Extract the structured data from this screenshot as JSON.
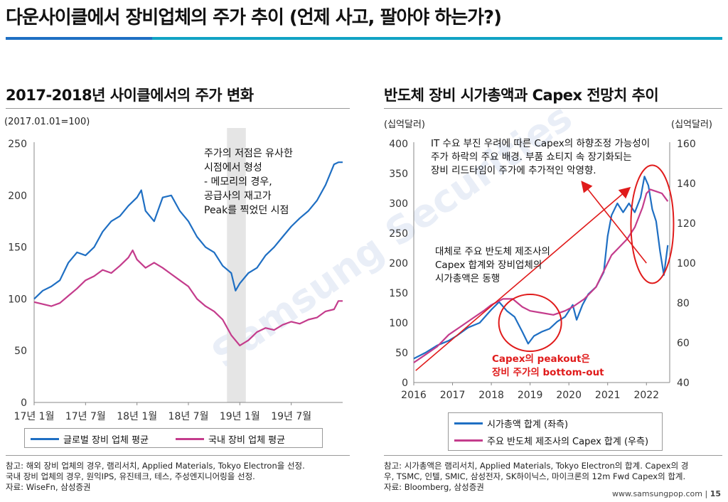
{
  "page": {
    "title": "다운사이클에서 장비업체의 주가 추이 (언제 사고, 팔아야 하는가?)",
    "watermark": "Samsung Securities",
    "footer_site": "www.samsungpop.com",
    "page_number": "15"
  },
  "left": {
    "title": "2017-2018년 사이클에서의 주가 변화",
    "unit": "(2017.01.01=100)",
    "notes": [
      "참고: 해외 장비 업체의 경우, 램리서치, Applied Materials, Tokyo Electron을 선정.",
      "국내 장비 업체의 경우, 원익IPS, 유진테크, 테스, 주성엔지니어링을 선정.",
      "자료: WiseFn, 삼성증권"
    ]
  },
  "right": {
    "title": "반도체 장비 시가총액과 Capex 전망치 추이",
    "unit_left": "(십억달러)",
    "unit_right": "(십억달러)",
    "notes": [
      "참고: 시가총액은 램리서치, Applied Materials, Tokyo Electron의 합계. Capex의 경",
      "우, TSMC, 인텔, SMIC, 삼성전자, SK하이닉스, 마이크론의 12m Fwd Capex의 합계.",
      "자료: Bloomberg, 삼성증권"
    ]
  },
  "chart_data": [
    {
      "type": "line",
      "ylim": [
        0,
        250
      ],
      "yticks": [
        0,
        50,
        100,
        150,
        200,
        250
      ],
      "xlim": [
        0,
        36
      ],
      "x_tick_labels": [
        "17년 1월",
        "17년 7월",
        "18년 1월",
        "18년 7월",
        "19년 1월",
        "19년 7월"
      ],
      "x_tick_positions": [
        0,
        6,
        12,
        18,
        24,
        30
      ],
      "shaded_region": [
        22.5,
        24.7
      ],
      "annotation": [
        "주가의 저점은 유사한",
        "시점에서 형성",
        "- 메모리의 경우,",
        "공급사의 재고가",
        "Peak를 찍었던 시점"
      ],
      "series": [
        {
          "name": "글로벌 장비 업체 평균",
          "color": "#1f6fc3",
          "points": [
            [
              0,
              100
            ],
            [
              1,
              108
            ],
            [
              2,
              112
            ],
            [
              3,
              118
            ],
            [
              4,
              135
            ],
            [
              5,
              145
            ],
            [
              6,
              142
            ],
            [
              7,
              150
            ],
            [
              8,
              165
            ],
            [
              9,
              175
            ],
            [
              10,
              180
            ],
            [
              11,
              190
            ],
            [
              12,
              198
            ],
            [
              12.5,
              205
            ],
            [
              13,
              185
            ],
            [
              14,
              175
            ],
            [
              15,
              198
            ],
            [
              16,
              200
            ],
            [
              17,
              185
            ],
            [
              18,
              175
            ],
            [
              19,
              160
            ],
            [
              20,
              150
            ],
            [
              21,
              145
            ],
            [
              22,
              132
            ],
            [
              23,
              125
            ],
            [
              23.5,
              108
            ],
            [
              24,
              115
            ],
            [
              25,
              125
            ],
            [
              26,
              130
            ],
            [
              27,
              142
            ],
            [
              28,
              150
            ],
            [
              29,
              160
            ],
            [
              30,
              170
            ],
            [
              31,
              178
            ],
            [
              32,
              185
            ],
            [
              33,
              195
            ],
            [
              34,
              210
            ],
            [
              35,
              230
            ],
            [
              35.5,
              232
            ],
            [
              36,
              232
            ]
          ]
        },
        {
          "name": "국내 장비 업체 평균",
          "color": "#c43c8c",
          "points": [
            [
              0,
              97
            ],
            [
              1,
              95
            ],
            [
              2,
              93
            ],
            [
              3,
              96
            ],
            [
              4,
              103
            ],
            [
              5,
              110
            ],
            [
              6,
              118
            ],
            [
              7,
              122
            ],
            [
              8,
              128
            ],
            [
              9,
              125
            ],
            [
              10,
              132
            ],
            [
              11,
              140
            ],
            [
              11.5,
              147
            ],
            [
              12,
              138
            ],
            [
              13,
              130
            ],
            [
              14,
              135
            ],
            [
              15,
              130
            ],
            [
              16,
              124
            ],
            [
              17,
              118
            ],
            [
              18,
              112
            ],
            [
              19,
              100
            ],
            [
              20,
              93
            ],
            [
              21,
              88
            ],
            [
              22,
              80
            ],
            [
              23,
              65
            ],
            [
              24,
              55
            ],
            [
              25,
              60
            ],
            [
              26,
              68
            ],
            [
              27,
              72
            ],
            [
              28,
              70
            ],
            [
              29,
              75
            ],
            [
              30,
              78
            ],
            [
              31,
              76
            ],
            [
              32,
              80
            ],
            [
              33,
              82
            ],
            [
              34,
              88
            ],
            [
              35,
              90
            ],
            [
              35.5,
              98
            ],
            [
              36,
              98
            ]
          ]
        }
      ]
    },
    {
      "type": "line",
      "ylim_left": [
        0,
        400
      ],
      "yticks_left": [
        0,
        50,
        100,
        150,
        200,
        250,
        300,
        350,
        400
      ],
      "ylim_right": [
        40,
        160
      ],
      "yticks_right": [
        40,
        60,
        80,
        100,
        120,
        140,
        160
      ],
      "xlim": [
        2016,
        2022.6
      ],
      "x_tick_labels": [
        "2016",
        "2017",
        "2018",
        "2019",
        "2020",
        "2021",
        "2022"
      ],
      "x_ticks": [
        2016,
        2017,
        2018,
        2019,
        2020,
        2021,
        2022
      ],
      "annotations": [
        [
          "IT 수요 부진 우려에 따른 Capex의 하향조정 가능성이",
          "주가 하락의 주요 배경. 부품 쇼티지 속 장기화되는",
          "장비 리드타임이 주가에 추가적인 악영향."
        ],
        [
          "대체로 주요 반도체 제조사의",
          "Capex 합계와 장비업체의",
          "시가총액은 동행"
        ],
        [
          "Capex의 peakout은",
          "장비 주가의 bottom-out"
        ]
      ],
      "series": [
        {
          "name": "시가총액 합계 (좌측)",
          "axis": "left",
          "color": "#1f6fc3",
          "points": [
            [
              2016,
              40
            ],
            [
              2016.3,
              50
            ],
            [
              2016.6,
              62
            ],
            [
              2016.9,
              70
            ],
            [
              2017.1,
              78
            ],
            [
              2017.4,
              92
            ],
            [
              2017.7,
              100
            ],
            [
              2018.0,
              122
            ],
            [
              2018.2,
              135
            ],
            [
              2018.4,
              120
            ],
            [
              2018.6,
              110
            ],
            [
              2018.8,
              85
            ],
            [
              2018.95,
              65
            ],
            [
              2019.1,
              78
            ],
            [
              2019.3,
              85
            ],
            [
              2019.5,
              90
            ],
            [
              2019.7,
              102
            ],
            [
              2019.9,
              110
            ],
            [
              2020.1,
              130
            ],
            [
              2020.2,
              105
            ],
            [
              2020.35,
              130
            ],
            [
              2020.5,
              148
            ],
            [
              2020.7,
              160
            ],
            [
              2020.9,
              185
            ],
            [
              2021.0,
              245
            ],
            [
              2021.1,
              280
            ],
            [
              2021.25,
              300
            ],
            [
              2021.4,
              285
            ],
            [
              2021.55,
              300
            ],
            [
              2021.7,
              285
            ],
            [
              2021.85,
              310
            ],
            [
              2021.95,
              345
            ],
            [
              2022.05,
              330
            ],
            [
              2022.15,
              290
            ],
            [
              2022.25,
              270
            ],
            [
              2022.35,
              220
            ],
            [
              2022.45,
              180
            ],
            [
              2022.55,
              230
            ]
          ]
        },
        {
          "name": "주요 반도체 제조사의 Capex 합계 (우측)",
          "axis": "right",
          "color": "#c43c8c",
          "points": [
            [
              2016,
              50
            ],
            [
              2016.3,
              54
            ],
            [
              2016.6,
              58
            ],
            [
              2016.9,
              64
            ],
            [
              2017.2,
              68
            ],
            [
              2017.5,
              72
            ],
            [
              2017.8,
              76
            ],
            [
              2018.0,
              79
            ],
            [
              2018.3,
              82
            ],
            [
              2018.55,
              82
            ],
            [
              2018.8,
              78
            ],
            [
              2019.0,
              76
            ],
            [
              2019.3,
              75
            ],
            [
              2019.6,
              74
            ],
            [
              2019.9,
              76
            ],
            [
              2020.1,
              78
            ],
            [
              2020.4,
              82
            ],
            [
              2020.7,
              88
            ],
            [
              2020.95,
              98
            ],
            [
              2021.1,
              104
            ],
            [
              2021.3,
              108
            ],
            [
              2021.5,
              112
            ],
            [
              2021.7,
              118
            ],
            [
              2021.9,
              128
            ],
            [
              2022.0,
              135
            ],
            [
              2022.1,
              137
            ],
            [
              2022.25,
              136
            ],
            [
              2022.4,
              135
            ],
            [
              2022.55,
              131
            ]
          ]
        }
      ]
    }
  ]
}
